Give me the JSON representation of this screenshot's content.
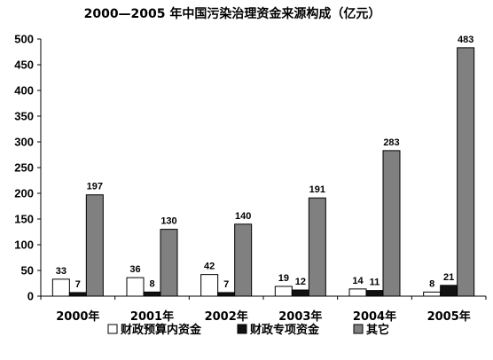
{
  "chart_data": {
    "type": "bar",
    "title": "2000—2005 年中国污染治理资金来源构成（亿元）",
    "categories": [
      "2000年",
      "2001年",
      "2002年",
      "2003年",
      "2004年",
      "2005年"
    ],
    "series": [
      {
        "name": "财政预算内资金",
        "values": [
          33,
          36,
          42,
          19,
          14,
          8
        ],
        "color": "#ffffff"
      },
      {
        "name": "财政专项资金",
        "values": [
          7,
          8,
          7,
          12,
          11,
          21
        ],
        "color": "#111111"
      },
      {
        "name": "其它",
        "values": [
          197,
          130,
          140,
          191,
          283,
          483
        ],
        "color": "#808080"
      }
    ],
    "ylim": [
      0,
      500
    ],
    "yticks": [
      "0",
      "50",
      "100",
      "150",
      "200",
      "250",
      "300",
      "350",
      "400",
      "450",
      "500"
    ],
    "grid": false,
    "legend_position": "bottom"
  }
}
